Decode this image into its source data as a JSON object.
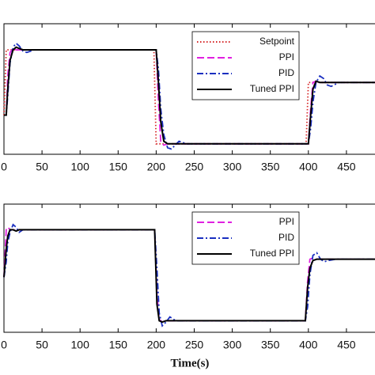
{
  "chart_data": [
    {
      "type": "line",
      "x": [
        0,
        3,
        5,
        8,
        12,
        16,
        20,
        25,
        30,
        40,
        60,
        197,
        200,
        203,
        206,
        210,
        215,
        220,
        225,
        230,
        240,
        260,
        397,
        400,
        403,
        406,
        410,
        415,
        420,
        425,
        430,
        440,
        460,
        500
      ],
      "xlim": [
        0,
        500
      ],
      "ylim": [
        0,
        1
      ],
      "xticks": [
        0,
        50,
        100,
        150,
        200,
        250,
        300,
        350,
        400,
        450
      ],
      "legend": "upper right",
      "series": [
        {
          "name": "Setpoint",
          "color": "#d62728",
          "dash": "dotted",
          "values": [
            0.3,
            0.8,
            0.8,
            0.8,
            0.8,
            0.8,
            0.8,
            0.8,
            0.8,
            0.8,
            0.8,
            0.8,
            0.08,
            0.08,
            0.08,
            0.08,
            0.08,
            0.08,
            0.08,
            0.08,
            0.08,
            0.08,
            0.08,
            0.55,
            0.55,
            0.55,
            0.55,
            0.55,
            0.55,
            0.55,
            0.55,
            0.55,
            0.55,
            0.55
          ]
        },
        {
          "name": "PPI",
          "color": "#e020e0",
          "dash": "dashed",
          "values": [
            0.3,
            0.3,
            0.6,
            0.78,
            0.81,
            0.8,
            0.8,
            0.8,
            0.8,
            0.8,
            0.8,
            0.8,
            0.8,
            0.4,
            0.1,
            0.07,
            0.08,
            0.08,
            0.08,
            0.08,
            0.08,
            0.08,
            0.08,
            0.08,
            0.35,
            0.55,
            0.56,
            0.55,
            0.55,
            0.55,
            0.55,
            0.55,
            0.55,
            0.55
          ]
        },
        {
          "name": "PID",
          "color": "#1a2fc0",
          "dash": "dashdot",
          "values": [
            0.3,
            0.3,
            0.45,
            0.7,
            0.82,
            0.85,
            0.83,
            0.79,
            0.78,
            0.8,
            0.8,
            0.8,
            0.8,
            0.65,
            0.35,
            0.15,
            0.05,
            0.04,
            0.07,
            0.1,
            0.08,
            0.08,
            0.08,
            0.08,
            0.2,
            0.4,
            0.55,
            0.6,
            0.58,
            0.53,
            0.52,
            0.55,
            0.55,
            0.55
          ]
        },
        {
          "name": "Tuned PPI",
          "color": "#000000",
          "dash": "solid",
          "values": [
            0.3,
            0.3,
            0.5,
            0.72,
            0.8,
            0.82,
            0.81,
            0.8,
            0.8,
            0.8,
            0.8,
            0.8,
            0.8,
            0.55,
            0.25,
            0.1,
            0.08,
            0.08,
            0.08,
            0.08,
            0.08,
            0.08,
            0.08,
            0.08,
            0.3,
            0.5,
            0.56,
            0.55,
            0.55,
            0.55,
            0.55,
            0.55,
            0.55,
            0.55
          ]
        }
      ]
    },
    {
      "type": "line",
      "x": [
        0,
        3,
        5,
        8,
        12,
        16,
        20,
        25,
        30,
        40,
        60,
        195,
        198,
        201,
        204,
        208,
        213,
        218,
        223,
        228,
        238,
        258,
        393,
        396,
        399,
        402,
        406,
        411,
        416,
        421,
        426,
        436,
        456,
        500
      ],
      "xlim": [
        0,
        500
      ],
      "ylim": [
        0,
        1
      ],
      "xticks": [
        0,
        50,
        100,
        150,
        200,
        250,
        300,
        350,
        400,
        450
      ],
      "xlabel": "Time(s)",
      "legend": "upper right",
      "series": [
        {
          "name": "PPI",
          "color": "#e020e0",
          "dash": "dashed",
          "values": [
            0.43,
            0.8,
            0.82,
            0.8,
            0.8,
            0.8,
            0.8,
            0.8,
            0.8,
            0.8,
            0.8,
            0.8,
            0.8,
            0.3,
            0.1,
            0.08,
            0.09,
            0.09,
            0.09,
            0.09,
            0.09,
            0.09,
            0.09,
            0.09,
            0.4,
            0.57,
            0.58,
            0.57,
            0.57,
            0.57,
            0.57,
            0.57,
            0.57,
            0.57
          ]
        },
        {
          "name": "PID",
          "color": "#1a2fc0",
          "dash": "dashdot",
          "values": [
            0.43,
            0.55,
            0.7,
            0.78,
            0.84,
            0.82,
            0.78,
            0.8,
            0.8,
            0.8,
            0.8,
            0.8,
            0.8,
            0.5,
            0.15,
            0.05,
            0.08,
            0.12,
            0.1,
            0.09,
            0.09,
            0.09,
            0.09,
            0.09,
            0.2,
            0.45,
            0.6,
            0.62,
            0.57,
            0.55,
            0.56,
            0.57,
            0.57,
            0.57
          ]
        },
        {
          "name": "Tuned PPI",
          "color": "#000000",
          "dash": "solid",
          "values": [
            0.43,
            0.65,
            0.75,
            0.8,
            0.8,
            0.79,
            0.8,
            0.8,
            0.8,
            0.8,
            0.8,
            0.8,
            0.8,
            0.22,
            0.09,
            0.08,
            0.09,
            0.09,
            0.09,
            0.09,
            0.09,
            0.09,
            0.09,
            0.09,
            0.35,
            0.5,
            0.56,
            0.57,
            0.57,
            0.57,
            0.57,
            0.57,
            0.57,
            0.57
          ]
        }
      ]
    }
  ]
}
